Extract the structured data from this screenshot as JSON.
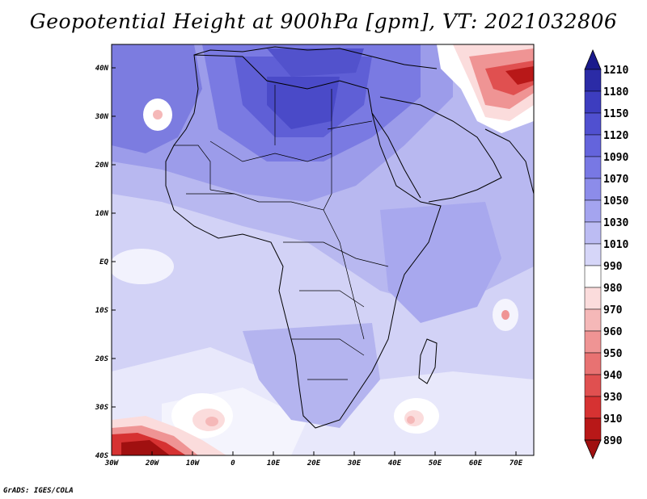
{
  "title": "Geopotential Height at 900hPa [gpm], VT: 2021032806",
  "credit": "GrADS: IGES/COLA",
  "map": {
    "x_ticks": [
      "30W",
      "20W",
      "10W",
      "0",
      "10E",
      "20E",
      "30E",
      "40E",
      "50E",
      "60E",
      "70E"
    ],
    "y_ticks": [
      "40N",
      "30N",
      "20N",
      "10N",
      "EQ",
      "10S",
      "20S",
      "30S",
      "40S"
    ]
  },
  "legend": {
    "values": [
      "1210",
      "1180",
      "1150",
      "1120",
      "1090",
      "1070",
      "1050",
      "1030",
      "1010",
      "990",
      "980",
      "970",
      "960",
      "950",
      "940",
      "930",
      "910",
      "890"
    ],
    "colors": [
      "#1a1a8c",
      "#2b2ba6",
      "#3d3dbf",
      "#5050d0",
      "#6464dc",
      "#7878e4",
      "#8c8cea",
      "#a4a4ef",
      "#bcbcf3",
      "#d6d6f8",
      "#ffffff",
      "#fbdcdc",
      "#f5b8b8",
      "#ef9494",
      "#e87272",
      "#e05050",
      "#d63232",
      "#b81818",
      "#a01010"
    ]
  }
}
